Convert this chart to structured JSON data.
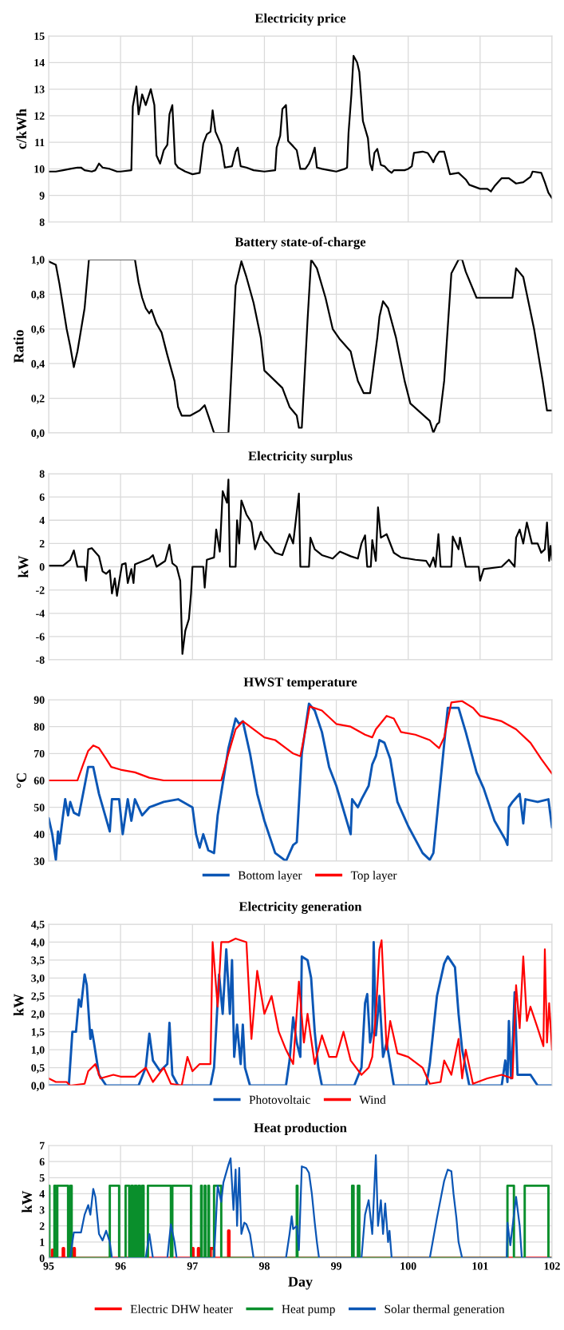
{
  "chart_data": [
    {
      "type": "line",
      "title": "Electricity price",
      "ylabel": "c/kWh",
      "xlim": [
        95,
        102
      ],
      "xticks": [
        95,
        96,
        97,
        98,
        99,
        100,
        101,
        102
      ],
      "ylim": [
        8,
        15
      ],
      "yticks": [
        8,
        9,
        10,
        11,
        12,
        13,
        14,
        15
      ],
      "grid": true,
      "tick_labels": "y",
      "legend": false,
      "series": [
        {
          "color": "#000000",
          "x": [
            95.0,
            95.1,
            95.2,
            95.3,
            95.4,
            95.45,
            95.5,
            95.6,
            95.65,
            95.7,
            95.75,
            95.85,
            95.95,
            96.0,
            96.15,
            96.17,
            96.22,
            96.25,
            96.3,
            96.35,
            96.42,
            96.47,
            96.5,
            96.55,
            96.6,
            96.65,
            96.68,
            96.72,
            96.76,
            96.8,
            96.9,
            97.0,
            97.1,
            97.15,
            97.2,
            97.25,
            97.28,
            97.32,
            97.36,
            97.4,
            97.45,
            97.55,
            97.6,
            97.63,
            97.67,
            97.75,
            97.85,
            98.0,
            98.15,
            98.17,
            98.22,
            98.25,
            98.3,
            98.33,
            98.4,
            98.45,
            98.5,
            98.57,
            98.62,
            98.66,
            98.7,
            98.73,
            98.8,
            98.9,
            99.0,
            99.12,
            99.15,
            99.17,
            99.21,
            99.24,
            99.29,
            99.32,
            99.37,
            99.44,
            99.47,
            99.5,
            99.53,
            99.57,
            99.62,
            99.67,
            99.72,
            99.77,
            99.8,
            99.95,
            100.0,
            100.05,
            100.08,
            100.2,
            100.27,
            100.32,
            100.35,
            100.38,
            100.43,
            100.5,
            100.58,
            100.7,
            100.8,
            100.85,
            101.0,
            101.1,
            101.15,
            101.2,
            101.3,
            101.4,
            101.5,
            101.6,
            101.7,
            101.73,
            101.85,
            101.9,
            101.95,
            102.0
          ],
          "values": [
            9.9,
            9.9,
            9.95,
            10.0,
            10.05,
            10.05,
            9.95,
            9.9,
            9.95,
            10.2,
            10.05,
            10.0,
            9.9,
            9.9,
            9.95,
            12.35,
            13.1,
            12.05,
            12.8,
            12.4,
            13.0,
            12.4,
            10.5,
            10.2,
            10.7,
            10.9,
            12.05,
            12.4,
            10.2,
            10.05,
            9.9,
            9.8,
            9.85,
            10.95,
            11.3,
            11.4,
            12.2,
            11.4,
            11.15,
            10.9,
            10.05,
            10.1,
            10.65,
            10.8,
            10.1,
            10.05,
            9.95,
            9.9,
            9.95,
            10.8,
            11.25,
            12.25,
            12.4,
            11.05,
            10.85,
            10.7,
            10.0,
            10.0,
            10.2,
            10.45,
            10.8,
            10.05,
            10.0,
            9.95,
            9.9,
            10.0,
            10.05,
            11.35,
            12.8,
            14.25,
            14.0,
            13.65,
            11.8,
            11.15,
            10.2,
            9.95,
            10.6,
            10.75,
            10.15,
            10.1,
            9.95,
            9.85,
            9.95,
            9.95,
            10.0,
            10.1,
            10.6,
            10.65,
            10.6,
            10.4,
            10.25,
            10.45,
            10.65,
            10.65,
            9.8,
            9.85,
            9.6,
            9.4,
            9.25,
            9.25,
            9.15,
            9.35,
            9.65,
            9.65,
            9.45,
            9.5,
            9.7,
            9.9,
            9.85,
            9.5,
            9.1,
            8.9
          ]
        }
      ]
    },
    {
      "type": "line",
      "title": "Battery state-of-charge",
      "ylabel": "Ratio",
      "xlim": [
        95,
        102
      ],
      "xticks": [
        95,
        96,
        97,
        98,
        99,
        100,
        101,
        102
      ],
      "ylim": [
        0,
        1
      ],
      "yticks": [
        {
          "value": 0,
          "label": "0,0"
        },
        {
          "value": 0.2,
          "label": "0,2"
        },
        {
          "value": 0.4,
          "label": "0,4"
        },
        {
          "value": 0.6,
          "label": "0,6"
        },
        {
          "value": 0.8,
          "label": "0,8"
        },
        {
          "value": 1,
          "label": "1,0"
        }
      ],
      "grid": true,
      "tick_labels": "y",
      "legend": false,
      "series": [
        {
          "color": "#000000",
          "x": [
            95.0,
            95.1,
            95.15,
            95.25,
            95.3,
            95.35,
            95.4,
            95.5,
            95.56,
            96.2,
            96.25,
            96.3,
            96.35,
            96.4,
            96.43,
            96.5,
            96.57,
            96.65,
            96.75,
            96.8,
            96.85,
            96.97,
            97.1,
            97.17,
            97.22,
            97.3,
            97.5,
            97.6,
            97.68,
            97.75,
            97.85,
            97.95,
            98.0,
            98.25,
            98.35,
            98.45,
            98.48,
            98.52,
            98.6,
            98.65,
            98.73,
            98.85,
            98.95,
            99.05,
            99.2,
            99.25,
            99.3,
            99.38,
            99.47,
            99.57,
            99.6,
            99.65,
            99.72,
            99.83,
            99.95,
            100.03,
            100.3,
            100.35,
            100.4,
            100.43,
            100.5,
            100.6,
            100.7,
            100.75,
            100.8,
            100.95,
            101.25,
            101.45,
            101.5,
            101.6,
            101.75,
            101.87,
            101.93,
            102.0
          ],
          "values": [
            0.99,
            0.97,
            0.86,
            0.6,
            0.5,
            0.38,
            0.47,
            0.72,
            1.0,
            1.0,
            0.87,
            0.78,
            0.72,
            0.69,
            0.71,
            0.63,
            0.58,
            0.45,
            0.3,
            0.15,
            0.1,
            0.1,
            0.13,
            0.16,
            0.1,
            0.0,
            0.0,
            0.85,
            0.99,
            0.9,
            0.75,
            0.55,
            0.36,
            0.26,
            0.15,
            0.1,
            0.03,
            0.03,
            0.65,
            1.0,
            0.95,
            0.78,
            0.6,
            0.54,
            0.47,
            0.38,
            0.3,
            0.23,
            0.23,
            0.55,
            0.67,
            0.76,
            0.72,
            0.55,
            0.3,
            0.17,
            0.07,
            0.0,
            0.05,
            0.06,
            0.3,
            0.92,
            1.0,
            1.0,
            0.93,
            0.78,
            0.78,
            0.78,
            0.95,
            0.9,
            0.6,
            0.3,
            0.13,
            0.13
          ]
        }
      ]
    },
    {
      "type": "line",
      "title": "Electricity surplus",
      "ylabel": "kW",
      "xlim": [
        95,
        102
      ],
      "xticks": [
        95,
        96,
        97,
        98,
        99,
        100,
        101,
        102
      ],
      "ylim": [
        -8,
        8
      ],
      "yticks": [
        -8,
        -6,
        -4,
        -2,
        0,
        2,
        4,
        6,
        8
      ],
      "grid": true,
      "tick_labels": "y",
      "legend": false,
      "series": [
        {
          "color": "#000000",
          "x": [
            95.0,
            95.2,
            95.3,
            95.35,
            95.4,
            95.5,
            95.52,
            95.55,
            95.6,
            95.7,
            95.75,
            95.8,
            95.85,
            95.88,
            95.92,
            95.95,
            95.98,
            96.02,
            96.07,
            96.1,
            96.15,
            96.18,
            96.2,
            96.4,
            96.45,
            96.5,
            96.62,
            96.68,
            96.72,
            96.78,
            96.83,
            96.86,
            96.9,
            96.95,
            96.98,
            97.0,
            97.15,
            97.17,
            97.2,
            97.3,
            97.33,
            97.38,
            97.42,
            97.48,
            97.5,
            97.52,
            97.6,
            97.62,
            97.65,
            97.68,
            97.75,
            97.82,
            97.87,
            97.95,
            98.0,
            98.05,
            98.15,
            98.25,
            98.35,
            98.4,
            98.48,
            98.5,
            98.62,
            98.64,
            98.7,
            98.8,
            98.95,
            99.05,
            99.2,
            99.3,
            99.35,
            99.4,
            99.43,
            99.48,
            99.5,
            99.55,
            99.58,
            99.62,
            99.7,
            99.8,
            99.9,
            100.1,
            100.25,
            100.3,
            100.35,
            100.38,
            100.42,
            100.45,
            100.6,
            100.62,
            100.7,
            100.72,
            100.8,
            100.98,
            101.0,
            101.05,
            101.3,
            101.4,
            101.48,
            101.5,
            101.55,
            101.6,
            101.65,
            101.72,
            101.8,
            101.85,
            101.9,
            101.93,
            101.96,
            101.98,
            102.0
          ],
          "values": [
            0.1,
            0.1,
            0.6,
            1.4,
            0,
            0,
            -1.2,
            1.5,
            1.6,
            0.9,
            -0.4,
            -0.6,
            -0.3,
            -2.3,
            -1.0,
            -2.5,
            -1.3,
            0.2,
            0.3,
            -1.4,
            -0.2,
            -1.4,
            0.2,
            0.7,
            1.0,
            0,
            0.5,
            1.9,
            0.3,
            0,
            -1.2,
            -7.5,
            -5.5,
            -4.5,
            -2.3,
            0,
            0,
            -1.8,
            0.6,
            0.8,
            3.2,
            1.3,
            6.5,
            5.5,
            7.5,
            0,
            0,
            4.0,
            2.0,
            5.7,
            4.5,
            3.8,
            1.5,
            3.0,
            2.3,
            2.0,
            1.2,
            1.0,
            2.8,
            2.0,
            6.3,
            0,
            0,
            2.5,
            1.5,
            1.0,
            0.7,
            1.3,
            0.9,
            0.7,
            2.0,
            2.7,
            0,
            0,
            2.3,
            0.5,
            5.1,
            2.5,
            2.8,
            1.2,
            0.8,
            0.6,
            0.5,
            0.0,
            0.8,
            0,
            2.8,
            0,
            0,
            2.6,
            1.5,
            2.5,
            0,
            0,
            -1.2,
            -0.2,
            0,
            0.6,
            0,
            2.5,
            3.2,
            2.0,
            3.8,
            2.0,
            2.0,
            1.2,
            1.5,
            3.8,
            0.5,
            1.8,
            0.6
          ]
        }
      ]
    },
    {
      "type": "line",
      "title": "HWST temperature",
      "ylabel": "°C",
      "xlim": [
        95,
        102
      ],
      "xticks": [
        95,
        96,
        97,
        98,
        99,
        100,
        101,
        102
      ],
      "ylim": [
        30,
        90
      ],
      "yticks": [
        30,
        40,
        50,
        60,
        70,
        80,
        90
      ],
      "grid": true,
      "tick_labels": "y",
      "legend": "bottom",
      "series": [
        {
          "name": "Bottom layer",
          "color": "#0b56b5",
          "x": [
            95.0,
            95.05,
            95.1,
            95.13,
            95.15,
            95.2,
            95.23,
            95.27,
            95.3,
            95.35,
            95.42,
            95.5,
            95.55,
            95.62,
            95.7,
            95.85,
            95.88,
            95.98,
            96.03,
            96.1,
            96.15,
            96.2,
            96.3,
            96.4,
            96.6,
            96.8,
            97.0,
            97.05,
            97.1,
            97.15,
            97.22,
            97.3,
            97.35,
            97.5,
            97.6,
            97.65,
            97.7,
            97.8,
            97.9,
            98.0,
            98.15,
            98.3,
            98.4,
            98.45,
            98.52,
            98.62,
            98.7,
            98.8,
            98.9,
            99.0,
            99.1,
            99.2,
            99.22,
            99.3,
            99.35,
            99.45,
            99.5,
            99.55,
            99.6,
            99.67,
            99.75,
            99.85,
            100.0,
            100.2,
            100.3,
            100.35,
            100.45,
            100.55,
            100.7,
            100.8,
            100.95,
            101.05,
            101.2,
            101.35,
            101.38,
            101.4,
            101.45,
            101.55,
            101.6,
            101.63,
            101.8,
            101.95,
            102.0
          ],
          "values": [
            46,
            40,
            30.5,
            41,
            36.5,
            47,
            53,
            47,
            52,
            48,
            47,
            58,
            65,
            65,
            55,
            41,
            53,
            53,
            40,
            53,
            45,
            53,
            47,
            50,
            52,
            53,
            50,
            40,
            35,
            40,
            34,
            33,
            47,
            72,
            83,
            81,
            82,
            70,
            55,
            45,
            33,
            30,
            36,
            37,
            70,
            88.5,
            86,
            78,
            65,
            58,
            49,
            40,
            53,
            50,
            53,
            58,
            66,
            69,
            75,
            74,
            68,
            52,
            43,
            33,
            30.5,
            33,
            60,
            87,
            87,
            78,
            63,
            57,
            45,
            38,
            36,
            50,
            52,
            55,
            44,
            53,
            52,
            53,
            42.5
          ]
        },
        {
          "name": "Top layer",
          "color": "#ff0000",
          "x": [
            95.0,
            95.4,
            95.48,
            95.55,
            95.62,
            95.7,
            95.8,
            95.87,
            96.0,
            96.2,
            96.4,
            96.6,
            97.0,
            97.4,
            97.5,
            97.6,
            97.7,
            97.8,
            98.0,
            98.15,
            98.3,
            98.4,
            98.5,
            98.58,
            98.63,
            98.8,
            99.0,
            99.2,
            99.4,
            99.5,
            99.55,
            99.7,
            99.8,
            99.9,
            100.1,
            100.3,
            100.43,
            100.5,
            100.6,
            100.75,
            100.9,
            101.0,
            101.3,
            101.5,
            101.7,
            101.85,
            102.0
          ],
          "values": [
            60,
            60,
            66,
            71,
            73,
            72,
            68,
            65,
            64,
            63,
            61,
            60,
            60,
            60,
            70,
            79,
            82,
            80,
            76,
            75,
            72,
            70,
            69,
            80,
            87.5,
            86,
            81,
            80,
            77,
            76,
            79,
            84,
            83,
            78,
            77,
            75,
            72,
            76,
            89,
            89.5,
            87,
            84,
            82,
            79,
            74,
            68,
            62.5
          ]
        }
      ]
    },
    {
      "type": "line",
      "title": "Electricity generation",
      "ylabel": "kW",
      "xlim": [
        95,
        102
      ],
      "xticks": [
        95,
        96,
        97,
        98,
        99,
        100,
        101,
        102
      ],
      "ylim": [
        0,
        4.5
      ],
      "yticks": [
        {
          "value": 0,
          "label": "0,0"
        },
        {
          "value": 0.5,
          "label": "0,5"
        },
        {
          "value": 1,
          "label": "1,0"
        },
        {
          "value": 1.5,
          "label": "1,5"
        },
        {
          "value": 2,
          "label": "2,0"
        },
        {
          "value": 2.5,
          "label": "2,5"
        },
        {
          "value": 3,
          "label": "3,0"
        },
        {
          "value": 3.5,
          "label": "3,5"
        },
        {
          "value": 4,
          "label": "4,0"
        },
        {
          "value": 4.5,
          "label": "4,5"
        }
      ],
      "grid": true,
      "tick_labels": "y",
      "legend": "bottom",
      "series": [
        {
          "name": "Photovoltaic",
          "color": "#0b56b5",
          "x": [
            95.0,
            95.28,
            95.33,
            95.38,
            95.42,
            95.45,
            95.5,
            95.53,
            95.58,
            95.6,
            95.63,
            95.7,
            95.8,
            96.25,
            96.35,
            96.4,
            96.45,
            96.55,
            96.65,
            96.68,
            96.72,
            96.8,
            97.25,
            97.3,
            97.37,
            97.42,
            97.47,
            97.52,
            97.55,
            97.58,
            97.62,
            97.67,
            97.7,
            97.73,
            97.8,
            98.3,
            98.35,
            98.4,
            98.45,
            98.5,
            98.52,
            98.6,
            98.65,
            98.7,
            98.75,
            98.8,
            99.25,
            99.35,
            99.4,
            99.43,
            99.47,
            99.5,
            99.52,
            99.55,
            99.6,
            99.65,
            99.7,
            99.8,
            100.25,
            100.3,
            100.4,
            100.5,
            100.55,
            100.65,
            100.7,
            100.75,
            100.85,
            101.3,
            101.35,
            101.38,
            101.4,
            101.43,
            101.45,
            101.48,
            101.52,
            101.6,
            101.7,
            101.8,
            102.0
          ],
          "values": [
            0,
            0,
            1.5,
            1.5,
            2.4,
            2.2,
            3.1,
            2.8,
            1.3,
            1.55,
            1.2,
            0.3,
            0,
            0,
            0.5,
            1.45,
            0.7,
            0.4,
            0.6,
            1.75,
            0.3,
            0,
            0,
            0.5,
            3.1,
            2.0,
            3.8,
            2.0,
            3.5,
            0.8,
            1.7,
            0.6,
            1.7,
            0.5,
            0,
            0,
            0.7,
            1.9,
            1.2,
            0.8,
            3.6,
            3.5,
            3.0,
            1.5,
            0.5,
            0,
            0,
            0.5,
            2.3,
            2.55,
            1.2,
            1.5,
            4.0,
            1.4,
            2.5,
            0.8,
            1.2,
            0,
            0,
            0.6,
            2.5,
            3.4,
            3.6,
            3.3,
            2.0,
            1.0,
            0,
            0,
            0.7,
            0.1,
            1.8,
            0.2,
            1.0,
            2.6,
            0.3,
            0.3,
            0.3,
            0,
            0
          ]
        },
        {
          "name": "Wind",
          "color": "#ff0000",
          "x": [
            95.0,
            95.1,
            95.25,
            95.3,
            95.5,
            95.55,
            95.65,
            95.72,
            95.9,
            96.0,
            96.2,
            96.35,
            96.45,
            96.6,
            96.7,
            96.85,
            96.93,
            97.0,
            97.1,
            97.25,
            97.28,
            97.35,
            97.4,
            97.5,
            97.6,
            97.75,
            97.82,
            97.9,
            98.0,
            98.1,
            98.2,
            98.3,
            98.4,
            98.48,
            98.55,
            98.6,
            98.7,
            98.8,
            98.9,
            99.0,
            99.1,
            99.2,
            99.35,
            99.45,
            99.5,
            99.55,
            99.6,
            99.63,
            99.7,
            99.75,
            99.85,
            100.0,
            100.2,
            100.3,
            100.45,
            100.5,
            100.6,
            100.7,
            100.75,
            100.8,
            100.9,
            101.1,
            101.3,
            101.45,
            101.5,
            101.55,
            101.6,
            101.65,
            101.7,
            101.8,
            101.88,
            101.9,
            101.93,
            101.96,
            102.0
          ],
          "values": [
            0.2,
            0.1,
            0.1,
            0,
            0.05,
            0.4,
            0.6,
            0.2,
            0.3,
            0.25,
            0.25,
            0.5,
            0.1,
            0.5,
            0.05,
            0,
            0.8,
            0.4,
            0.6,
            0.6,
            4.0,
            2.2,
            4.0,
            4.0,
            4.1,
            4.0,
            1.3,
            3.2,
            2.0,
            2.5,
            1.5,
            1.0,
            0.6,
            2.9,
            1.2,
            2.0,
            0.6,
            1.4,
            0.8,
            0.8,
            1.5,
            0.7,
            0.3,
            0.5,
            0.8,
            2.0,
            3.8,
            4.05,
            1.0,
            1.8,
            0.9,
            0.8,
            0.5,
            0.05,
            0.1,
            0.7,
            0.3,
            1.3,
            0.2,
            1.0,
            0.05,
            0.2,
            0.3,
            0.2,
            2.8,
            1.6,
            3.6,
            1.8,
            2.2,
            1.6,
            1.1,
            3.8,
            1.2,
            2.3,
            1.0
          ]
        }
      ]
    },
    {
      "type": "line",
      "title": "Heat production",
      "xlabel": "Day",
      "ylabel": "kW",
      "xlim": [
        95,
        102
      ],
      "xticks": [
        95,
        96,
        97,
        98,
        99,
        100,
        101,
        102
      ],
      "ylim": [
        0,
        7
      ],
      "yticks": [
        0,
        1,
        2,
        3,
        4,
        5,
        6,
        7
      ],
      "grid": true,
      "legend": "bottom",
      "series": [
        {
          "name": "Electric DHW heater",
          "color": "#ff0000",
          "x": [
            95,
            95.05,
            95.05,
            95.06,
            95.06,
            95.2,
            95.2,
            95.21,
            95.21,
            95.35,
            95.35,
            95.36,
            95.36,
            97.0,
            97.0,
            97.01,
            97.01,
            97.08,
            97.08,
            97.09,
            97.09,
            97.25,
            97.25,
            97.3,
            97.3,
            97.5,
            97.5,
            97.51,
            97.51,
            102
          ],
          "values": [
            0,
            0,
            0.5,
            0.5,
            0,
            0,
            0.6,
            0.6,
            0,
            0,
            0.6,
            0.6,
            0,
            0,
            0.6,
            0.6,
            0,
            0,
            0.6,
            0.6,
            0,
            0,
            0.6,
            0.6,
            0,
            0,
            1.7,
            1.7,
            0,
            0
          ]
        },
        {
          "name": "Heat pump",
          "color": "#0a8f2c",
          "x": [
            95,
            95.01,
            95.01,
            95.08,
            95.08,
            95.1,
            95.1,
            95.12,
            95.12,
            95.27,
            95.27,
            95.3,
            95.3,
            95.32,
            95.32,
            95.85,
            95.85,
            95.98,
            95.98,
            96.07,
            96.07,
            96.12,
            96.12,
            96.15,
            96.15,
            96.17,
            96.17,
            96.2,
            96.2,
            96.22,
            96.22,
            96.25,
            96.25,
            96.27,
            96.27,
            96.3,
            96.3,
            96.32,
            96.32,
            96.38,
            96.38,
            96.7,
            96.7,
            96.72,
            96.72,
            96.98,
            96.98,
            97.12,
            97.12,
            97.13,
            97.13,
            97.17,
            97.17,
            97.18,
            97.18,
            97.22,
            97.22,
            97.23,
            97.23,
            97.3,
            97.3,
            97.4,
            97.4,
            98.45,
            98.45,
            98.46,
            98.46,
            99.22,
            99.22,
            99.24,
            99.24,
            99.3,
            99.3,
            99.32,
            99.32,
            101.38,
            101.38,
            101.47,
            101.47,
            101.62,
            101.62,
            101.95,
            101.95,
            102
          ],
          "values": [
            4.5,
            4.5,
            0,
            0,
            4.5,
            4.5,
            0,
            0,
            4.5,
            4.5,
            0,
            0,
            4.5,
            4.5,
            0,
            0,
            4.5,
            4.5,
            0,
            0,
            4.5,
            4.5,
            0,
            0,
            4.5,
            4.5,
            0,
            0,
            4.5,
            4.5,
            0,
            0,
            4.5,
            4.5,
            0,
            0,
            4.5,
            4.5,
            0,
            0,
            4.5,
            4.5,
            0,
            0,
            4.5,
            4.5,
            0,
            0,
            4.5,
            4.5,
            0,
            0,
            4.5,
            4.5,
            0,
            0,
            4.5,
            4.5,
            0,
            0,
            4.5,
            4.5,
            0,
            0,
            4.5,
            4.5,
            0,
            0,
            4.5,
            4.5,
            0,
            0,
            4.5,
            4.5,
            0,
            0,
            4.5,
            4.5,
            0,
            0,
            4.5,
            4.5,
            0,
            0
          ]
        },
        {
          "name": "Solar thermal generation",
          "color": "#0b56b5",
          "x": [
            95.0,
            95.3,
            95.33,
            95.35,
            95.45,
            95.5,
            95.55,
            95.58,
            95.62,
            95.65,
            95.7,
            95.75,
            95.8,
            95.85,
            95.88,
            96.35,
            96.4,
            96.45,
            96.65,
            96.7,
            96.75,
            96.78,
            97.3,
            97.35,
            97.4,
            97.43,
            97.5,
            97.53,
            97.57,
            97.6,
            97.62,
            97.65,
            97.68,
            97.72,
            97.75,
            97.8,
            97.85,
            98.3,
            98.35,
            98.38,
            98.4,
            98.45,
            98.48,
            98.52,
            98.58,
            98.62,
            98.66,
            98.7,
            98.73,
            98.76,
            99.35,
            99.4,
            99.45,
            99.5,
            99.52,
            99.55,
            99.58,
            99.62,
            99.65,
            99.68,
            99.72,
            99.74,
            99.77,
            100.3,
            100.4,
            100.5,
            100.55,
            100.6,
            100.63,
            100.67,
            100.7,
            100.75,
            101.37,
            101.38,
            101.42,
            101.5,
            101.55,
            101.58,
            102.0
          ],
          "values": [
            0,
            0,
            1.0,
            1.6,
            1.6,
            2.7,
            3.3,
            2.7,
            4.3,
            3.8,
            1.5,
            1.1,
            1.7,
            1.0,
            0,
            0,
            1.5,
            0,
            0,
            2.1,
            1.0,
            0,
            0,
            4.5,
            3.5,
            4.7,
            5.8,
            6.2,
            3.0,
            5.5,
            2.0,
            5.6,
            1.5,
            2.2,
            2.1,
            1.5,
            0,
            0,
            1.5,
            2.6,
            1.8,
            2.0,
            0.5,
            5.7,
            5.6,
            5.3,
            4.0,
            2.2,
            1.0,
            0,
            0,
            2.7,
            3.6,
            1.5,
            3.5,
            6.4,
            2.0,
            3.6,
            1.5,
            3.4,
            1.0,
            1.7,
            0,
            0,
            2.5,
            4.8,
            5.5,
            5.4,
            4.0,
            2.5,
            1.0,
            0,
            0,
            2.2,
            0.8,
            3.8,
            2.0,
            0,
            0
          ]
        }
      ]
    }
  ]
}
